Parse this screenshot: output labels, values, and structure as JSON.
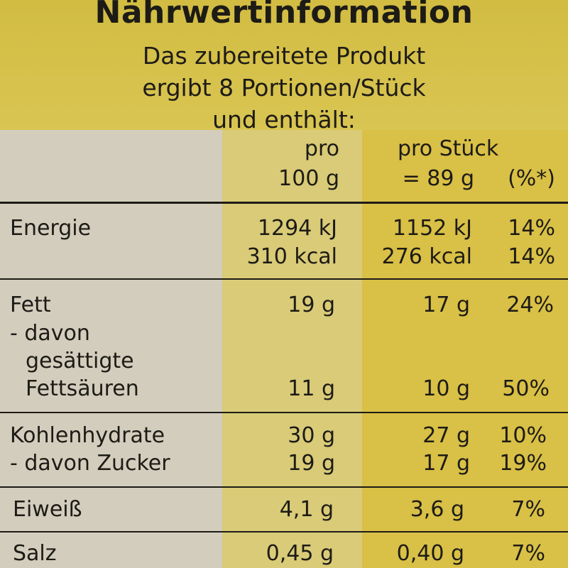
{
  "header": {
    "title": "Nährwertinformation",
    "subtitle_lines": [
      "Das zubereitete Produkt",
      "ergibt 8 Portionen/Stück",
      "und enthält:"
    ]
  },
  "columns": {
    "per100_line1": "pro",
    "per100_line2": "100 g",
    "perpiece_line1": "pro Stück",
    "perpiece_line2": "= 89 g",
    "percent": "(%*)"
  },
  "rows": {
    "energie": {
      "label": "Energie",
      "kj_100": "1294 kJ",
      "kj_piece": "1152 kJ",
      "kj_pct": "14%",
      "kcal_100": "310 kcal",
      "kcal_piece": "276 kcal",
      "kcal_pct": "14%"
    },
    "fett": {
      "label": "Fett",
      "per100": "19 g",
      "perpiece": "17 g",
      "pct": "24%"
    },
    "fettsaeuren": {
      "label_line1": "- davon",
      "label_line2": "gesättigte",
      "label_line3": "Fettsäuren",
      "per100": "11 g",
      "perpiece": "10 g",
      "pct": "50%"
    },
    "kohlenhydrate": {
      "label": "Kohlenhydrate",
      "per100": "30 g",
      "perpiece": "27 g",
      "pct": "10%"
    },
    "zucker": {
      "label": "- davon Zucker",
      "per100": "19 g",
      "perpiece": "17 g",
      "pct": "19%"
    },
    "eiweiss": {
      "label": "Eiweiß",
      "per100": "4,1 g",
      "perpiece": "3,6 g",
      "pct": "7%"
    },
    "salz": {
      "label": "Salz",
      "per100": "0,45 g",
      "perpiece": "0,40 g",
      "pct": "7%"
    }
  }
}
